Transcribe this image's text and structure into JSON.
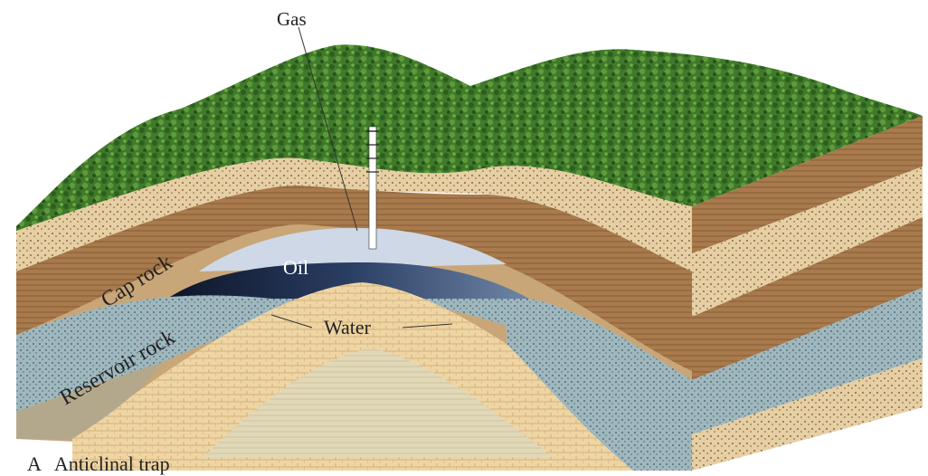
{
  "labels": {
    "gas": "Gas",
    "oil": "Oil",
    "water": "Water",
    "cap_rock": "Cap rock",
    "reservoir_rock": "Reservoir rock"
  },
  "caption": {
    "letter": "A",
    "text": "Anticlinal trap"
  },
  "colors": {
    "vegetation": "#3f7a2a",
    "sandstone": "#e3c79a",
    "cap_rock": "#a6764a",
    "reservoir": "#9db3b6",
    "oil": "#1f2f4e",
    "gas": "#cfd8e6",
    "core": "#dcd3b2",
    "water_blue": "#7fa7b3"
  }
}
